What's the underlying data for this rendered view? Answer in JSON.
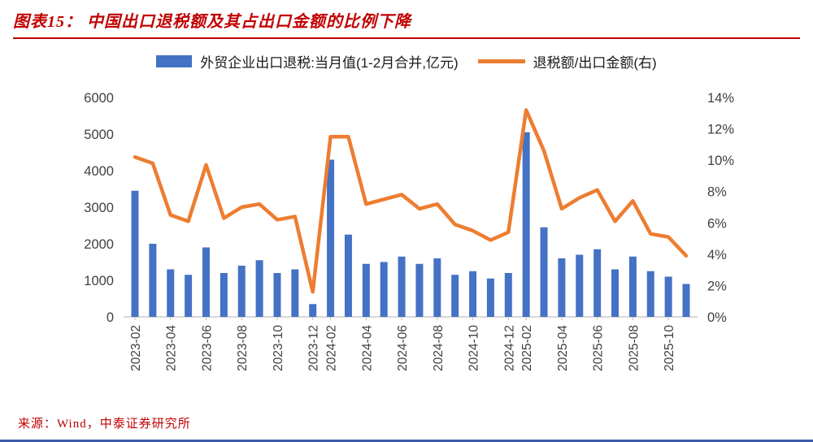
{
  "header": {
    "title": "图表15：  中国出口退税额及其占出口金额的比例下降"
  },
  "legend": {
    "bar_label": "外贸企业出口退税:当月值(1-2月合并,亿元)",
    "line_label": "退税额/出口金额(右)"
  },
  "footer": {
    "source": "来源：Wind，中泰证券研究所"
  },
  "colors": {
    "bar": "#4472C4",
    "line": "#ED7D31",
    "title_red": "#C00000",
    "footer_line_blue": "#3A5BA9",
    "axis_text": "#404040",
    "axis_line": "#BFBFBF"
  },
  "chart_data": {
    "type": "bar",
    "subtype": "bar+line dual-axis combo",
    "title": "中国出口退税额及其占出口金额的比例下降",
    "grid": false,
    "legend_position": "top",
    "categories": [
      "2023-02",
      "2023-03",
      "2023-04",
      "2023-05",
      "2023-06",
      "2023-07",
      "2023-08",
      "2023-09",
      "2023-10",
      "2023-11",
      "2023-12",
      "2024-02",
      "2024-03",
      "2024-04",
      "2024-05",
      "2024-06",
      "2024-07",
      "2024-08",
      "2024-09",
      "2024-10",
      "2024-11",
      "2024-12",
      "2025-02",
      "2025-03",
      "2025-04",
      "2025-05",
      "2025-06",
      "2025-07",
      "2025-08",
      "2025-09",
      "2025-10",
      "2025-11"
    ],
    "x_tick_labels_shown": [
      "2023-02",
      "2023-04",
      "2023-06",
      "2023-08",
      "2023-10",
      "2023-12",
      "2024-02",
      "2024-04",
      "2024-06",
      "2024-08",
      "2024-10",
      "2024-12",
      "2025-02",
      "2025-04",
      "2025-06",
      "2025-08",
      "2025-10"
    ],
    "series": [
      {
        "name": "外贸企业出口退税:当月值(1-2月合并,亿元)",
        "type": "bar",
        "axis": "left",
        "color": "#4472C4",
        "values": [
          3450,
          2000,
          1300,
          1150,
          1900,
          1200,
          1400,
          1550,
          1200,
          1300,
          350,
          4300,
          2250,
          1450,
          1500,
          1650,
          1450,
          1600,
          1150,
          1250,
          1050,
          1200,
          5050,
          2450,
          1600,
          1700,
          1850,
          1300,
          1650,
          1250,
          1100,
          900
        ]
      },
      {
        "name": "退税额/出口金额(右)",
        "type": "line",
        "axis": "right",
        "color": "#ED7D31",
        "values": [
          10.2,
          9.8,
          6.5,
          6.1,
          9.7,
          6.3,
          7.0,
          7.2,
          6.2,
          6.4,
          1.6,
          11.5,
          11.5,
          7.2,
          7.5,
          7.8,
          6.9,
          7.2,
          5.9,
          5.5,
          4.9,
          5.4,
          13.2,
          10.6,
          6.9,
          7.6,
          8.1,
          6.1,
          7.4,
          5.3,
          5.1,
          3.9
        ]
      }
    ],
    "left_axis": {
      "min": 0,
      "max": 6000,
      "step": 1000,
      "tick_labels": [
        "0",
        "1000",
        "2000",
        "3000",
        "4000",
        "5000",
        "6000"
      ]
    },
    "right_axis": {
      "min": 0,
      "max": 14,
      "step": 2,
      "tick_labels": [
        "0%",
        "2%",
        "4%",
        "6%",
        "8%",
        "10%",
        "12%",
        "14%"
      ]
    }
  }
}
